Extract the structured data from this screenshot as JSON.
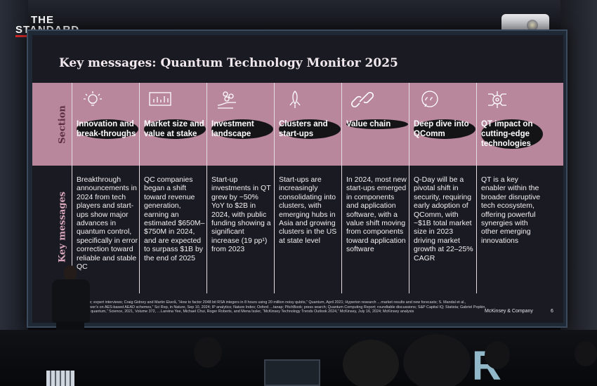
{
  "logo": {
    "line1": "THE",
    "line2": "STANDARD"
  },
  "slide": {
    "title": "Key messages: Quantum Technology Monitor 2025",
    "row_labels": {
      "section": "Section",
      "key_messages": "Key messages"
    },
    "columns": [
      {
        "icon": "lightbulb-icon",
        "heading": "Innovation and break-throughs",
        "body": "Breakthrough announcements in 2024 from tech players and start-ups show major advances in quantum control, specifically in error correction toward reliable and stable QC"
      },
      {
        "icon": "bar-chart-icon",
        "heading": "Market size and value at stake",
        "body": "QC companies began a shift toward revenue generation, earning an estimated $650M–$750M in 2024, and are expected to surpass $1B by the end of 2025"
      },
      {
        "icon": "coins-hand-icon",
        "heading": "Investment landscape",
        "body": "Start-up investments in QT grew by ~50% YoY to $2B in 2024, with public funding showing a significant increase (19 pp¹) from 2023"
      },
      {
        "icon": "rocket-icon",
        "heading": "Clusters and start-ups",
        "body": "Start-ups are increasingly consolidating into clusters, with emerging hubs in Asia and growing clusters in the US at state level"
      },
      {
        "icon": "chain-link-icon",
        "heading": "Value chain",
        "body": "In 2024, most new start-ups emerged in components and application software, with a value shift moving from components toward application software"
      },
      {
        "icon": "speech-bubble-icon",
        "heading": "Deep dive into QComm",
        "body": "Q-Day will be a pivotal shift in security, requiring early adoption of QComm, with ~$1B total market size in 2023 driving market growth at 22–25% CAGR"
      },
      {
        "icon": "circuit-gear-icon",
        "heading": "QT impact on cutting-edge technologies",
        "body": "QT is a key enabler within the broader disruptive tech ecosystem, offering powerful synergies with other emerging innovations"
      }
    ],
    "footnote": "…nts. …runchbase; expert interviews; Craig Gidney and Martin Ekerå, “How to factor 2048 bit RSA integers in 8 hours using 20 million noisy qubits,” Quantum, April 2021; Hyperion research …market results and new forecasts; S. Mandal et al., “Implementing Grover’s on AES-based AEAD schemes,” Sci Rep, in Nature, Sep 10, 2024; IP analytics; Nature Index; Oxford …tanap; PitchBook; press search; Quantum Computing Report; roundtable discussions; S&P Capital IQ; Statista; Gabriel Popkin, “The internet goes quantum,” Science, 2021, Volume 372, …Lareina Yee, Michael Chui, Roger Roberts, and Mena Issler, “McKinsey Technology Trends Outlook 2024,” McKinsey, July 16, 2024; McKinsey analysis",
    "brand": "McKinsey & Company",
    "page_number": "6"
  },
  "foreground": {
    "stage_letters": "R"
  },
  "colors": {
    "band": "#b9879c",
    "slide_bg": "#1a1a22",
    "logo_bar": "#d42a2a"
  }
}
